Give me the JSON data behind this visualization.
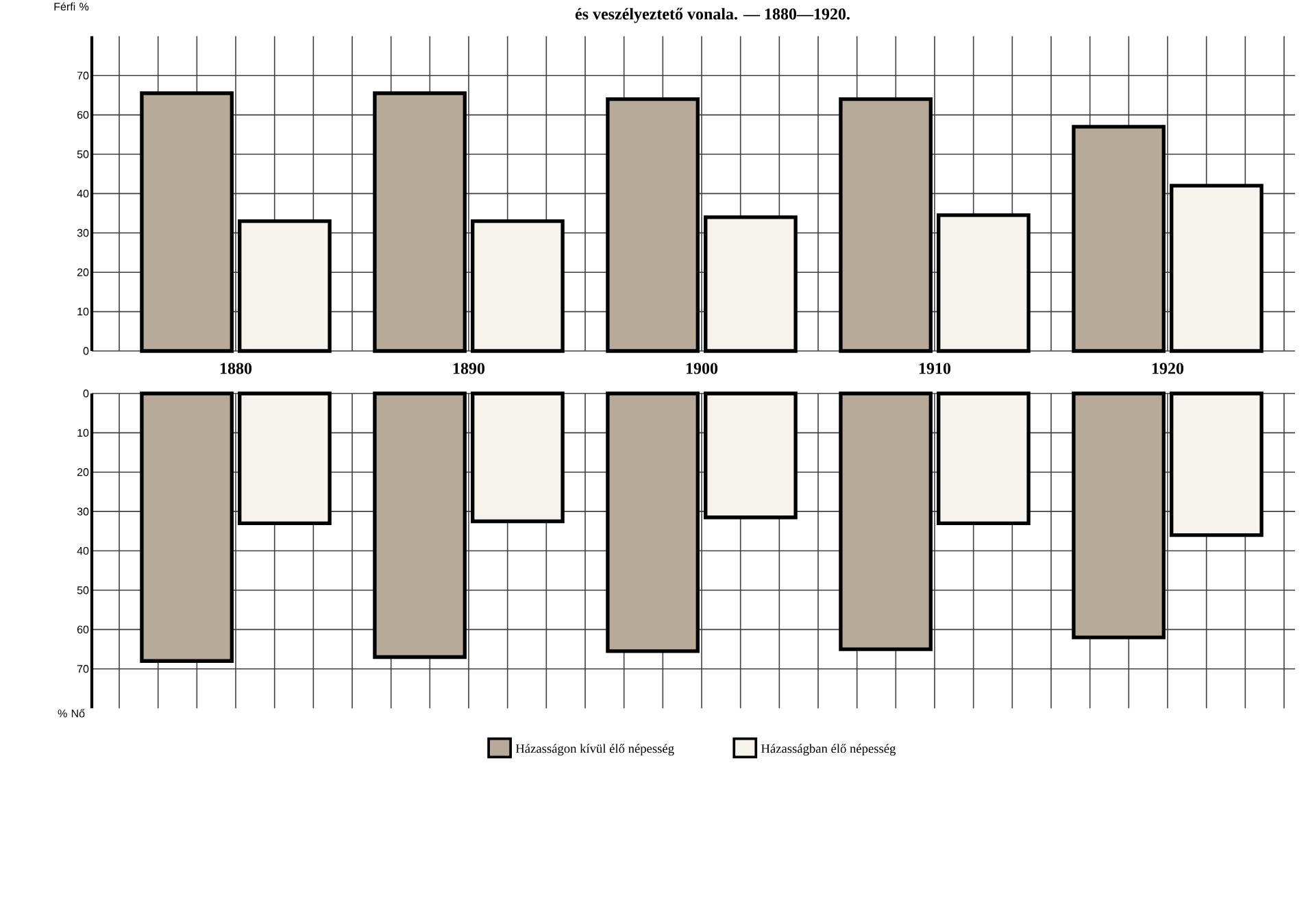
{
  "chart_data": [
    {
      "type": "bar",
      "title": "és veszélyeztető vonala. — 1880—1920.",
      "ylabel": "Férfi %",
      "categories": [
        "1880",
        "1890",
        "1900",
        "1910",
        "1920"
      ],
      "ylim": [
        0,
        80
      ],
      "yticks": [
        0,
        10,
        20,
        30,
        40,
        50,
        60,
        70
      ],
      "grid": true,
      "series": [
        {
          "color": "#b8aa98",
          "values": [
            65.5,
            65.5,
            64,
            64,
            57
          ]
        },
        {
          "color": "#f6f3ec",
          "values": [
            33,
            33,
            34,
            34.5,
            42
          ]
        }
      ]
    },
    {
      "type": "bar",
      "ylabel": "% Nő",
      "categories": [
        "1880",
        "1890",
        "1900",
        "1910",
        "1920"
      ],
      "ylim": [
        80,
        0
      ],
      "yticks": [
        0,
        10,
        20,
        30,
        40,
        50,
        60,
        70
      ],
      "grid": true,
      "tick_labels": "y",
      "legend": "bottom",
      "series": [
        {
          "name": "Házasságon kívül élő népesség",
          "color": "#b8aa98",
          "values": [
            68,
            67,
            65.5,
            65,
            62
          ]
        },
        {
          "name": "Házasságban élő népesség",
          "color": "#f6f3ec",
          "values": [
            33,
            32.5,
            31.5,
            33,
            36
          ]
        }
      ]
    }
  ]
}
